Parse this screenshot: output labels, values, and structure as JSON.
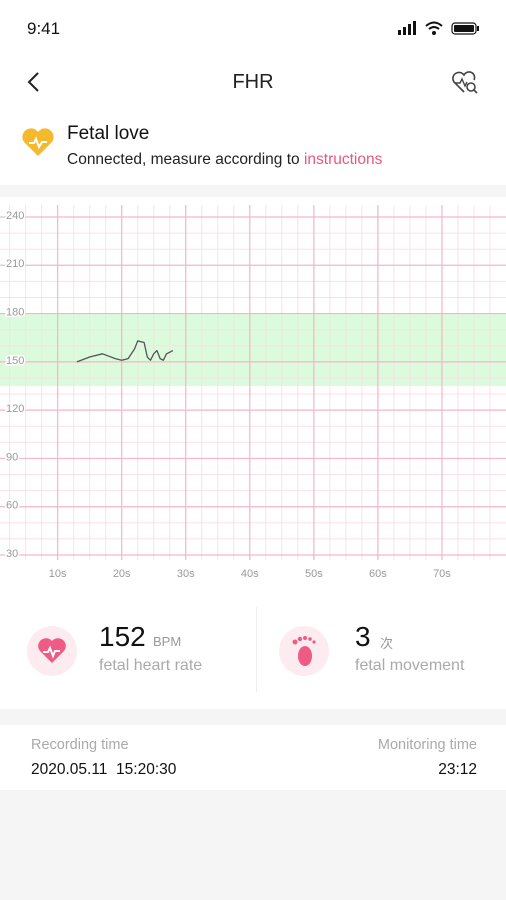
{
  "status_bar": {
    "time": "9:41"
  },
  "nav": {
    "title": "FHR"
  },
  "device": {
    "name": "Fetal love",
    "status": "Connected, measure according to ",
    "link": "instructions"
  },
  "chart": {
    "type": "line",
    "color": "#555555",
    "band_color": "#dcfadc",
    "grid_color": "#f3b6c8",
    "minor_grid_color": "#fbe0e8",
    "ylim": [
      30,
      240
    ],
    "yticks": [
      240,
      210,
      180,
      150,
      120,
      90,
      60,
      30
    ],
    "xlim": [
      1,
      80
    ],
    "xticks": [
      {
        "value": 10,
        "label": "10s"
      },
      {
        "value": 20,
        "label": "20s"
      },
      {
        "value": 30,
        "label": "30s"
      },
      {
        "value": 40,
        "label": "40s"
      },
      {
        "value": 50,
        "label": "50s"
      },
      {
        "value": 60,
        "label": "60s"
      },
      {
        "value": 70,
        "label": "70s"
      }
    ],
    "normal_range": [
      135,
      180
    ],
    "x": [
      13,
      15,
      17,
      19,
      20,
      21,
      22,
      22.5,
      23.5,
      24,
      24.5,
      25,
      25.5,
      26,
      26.5,
      27,
      28
    ],
    "values": [
      150,
      153,
      155,
      152,
      151,
      152,
      158,
      163,
      162,
      153,
      151,
      155,
      157,
      152,
      151,
      155,
      157
    ]
  },
  "stats": {
    "heart_rate": {
      "value": 152,
      "unit": "BPM",
      "label": "fetal heart rate"
    },
    "movement": {
      "value": 3,
      "unit": "次",
      "label": "fetal movement"
    }
  },
  "record": {
    "recording_label": "Recording time",
    "recording_time": "2020.05.11  15:20:30",
    "monitoring_label": "Monitoring time",
    "monitoring_time": "23:12"
  }
}
